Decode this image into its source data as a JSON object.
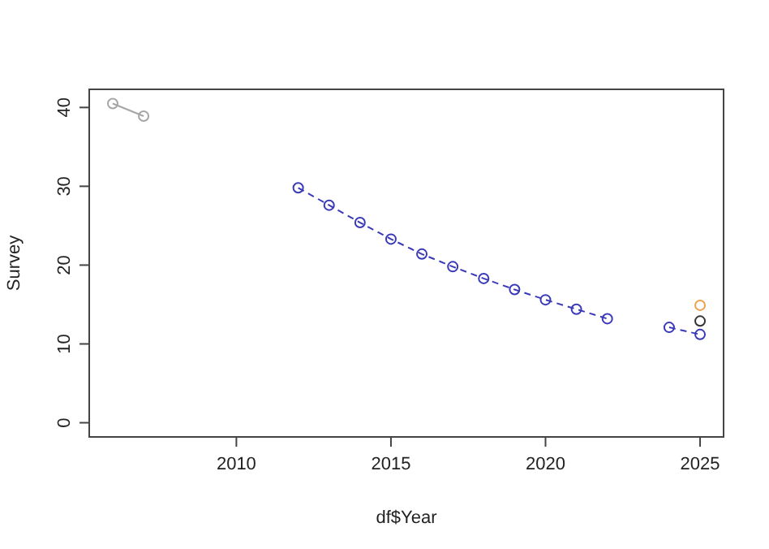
{
  "chart_data": {
    "type": "line",
    "xlabel": "df$Year",
    "ylabel": "Survey",
    "xlim": [
      2005.24,
      2025.76
    ],
    "ylim": [
      -1.8,
      42.3
    ],
    "xticks": [
      2010,
      2015,
      2020,
      2025
    ],
    "yticks": [
      0,
      10,
      20,
      30,
      40
    ],
    "marker": "circle",
    "grid": false,
    "series": [
      {
        "color": "#a6a6a6",
        "line_style": "solid",
        "x": [
          2006,
          2007
        ],
        "values": [
          40.5,
          38.9
        ]
      },
      {
        "color": "#3a3ab8",
        "line_style": "dashed",
        "x": [
          2012,
          2013,
          2014,
          2015,
          2016,
          2017,
          2018,
          2019,
          2020,
          2021,
          2022,
          2023,
          2024,
          2025
        ],
        "values": [
          29.8,
          27.6,
          25.4,
          23.3,
          21.4,
          19.8,
          18.3,
          16.9,
          15.6,
          14.4,
          13.2,
          null,
          12.1,
          11.2
        ]
      },
      {
        "type": "scatter",
        "color": "#333333",
        "x": [
          2025
        ],
        "values": [
          12.9
        ]
      },
      {
        "type": "scatter",
        "color": "#f0a050",
        "x": [
          2025
        ],
        "values": [
          14.9
        ]
      }
    ]
  }
}
